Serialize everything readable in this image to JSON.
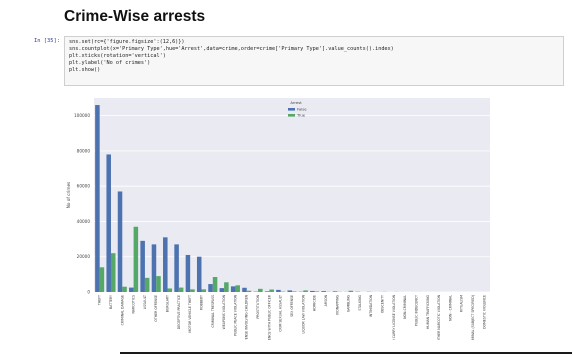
{
  "heading": "Crime-Wise arrests",
  "cell": {
    "prompt": "In [35]:",
    "code_lines": [
      "sns.set(rc={'figure.figsize':(12,6)})",
      "sns.countplot(x='Primary Type',hue='Arrest',data=crime,order=crime['Primary Type'].value_counts().index)",
      "plt.xticks(rotation='vertical')",
      "plt.ylabel('No of crimes')",
      "plt.show()"
    ]
  },
  "colors": {
    "plot_bg": "#eaeaf2",
    "false_bar": "#4c72b0",
    "true_bar": "#55a868"
  },
  "chart_data": {
    "type": "bar",
    "categories": [
      "THEFT",
      "BATTERY",
      "CRIMINAL DAMAGE",
      "NARCOTICS",
      "ASSAULT",
      "OTHER OFFENSE",
      "BURGLARY",
      "DECEPTIVE PRACTICE",
      "MOTOR VEHICLE THEFT",
      "ROBBERY",
      "CRIMINAL TRESPASS",
      "WEAPONS VIOLATION",
      "PUBLIC PEACE VIOLATION",
      "OFFENSE INVOLVING CHILDREN",
      "PROSTITUTION",
      "INTERFERENCE WITH PUBLIC OFFICER",
      "CRIM SEXUAL ASSAULT",
      "SEX OFFENSE",
      "LIQUOR LAW VIOLATION",
      "HOMICIDE",
      "ARSON",
      "KIDNAPPING",
      "GAMBLING",
      "STALKING",
      "INTIMIDATION",
      "OBSCENITY",
      "CONCEALED CARRY LICENSE VIOLATION",
      "NON-CRIMINAL",
      "PUBLIC INDECENCY",
      "HUMAN TRAFFICKING",
      "OTHER NARCOTIC VIOLATION",
      "NON - CRIMINAL",
      "RITUALISM",
      "NON-CRIMINAL (SUBJECT SPECIFIED)",
      "DOMESTIC VIOLENCE"
    ],
    "series": [
      {
        "name": "False",
        "values": [
          106000,
          78000,
          57000,
          2500,
          29000,
          27000,
          31000,
          27000,
          21000,
          20000,
          4500,
          2200,
          3200,
          2400,
          200,
          350,
          1200,
          900,
          150,
          600,
          500,
          350,
          60,
          150,
          120,
          25,
          5,
          10,
          10,
          5,
          3,
          2,
          2,
          1,
          1
        ]
      },
      {
        "name": "True",
        "values": [
          14000,
          22000,
          3000,
          37000,
          8000,
          9000,
          2000,
          2500,
          1500,
          1500,
          8500,
          5500,
          3800,
          700,
          1800,
          1400,
          200,
          300,
          900,
          300,
          100,
          100,
          700,
          20,
          30,
          80,
          60,
          3,
          20,
          2,
          4,
          1,
          1,
          1,
          1
        ]
      }
    ],
    "ylabel": "No of crimes",
    "ylim": [
      0,
      110000
    ],
    "yticks": [
      0,
      20000,
      40000,
      60000,
      80000,
      100000
    ],
    "legend": {
      "title": "Arrest",
      "entries": [
        "False",
        "True"
      ],
      "placement": "top-center"
    },
    "grid": true
  }
}
